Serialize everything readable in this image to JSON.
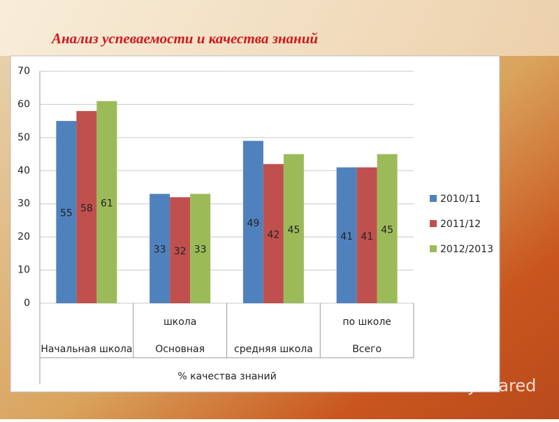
{
  "chart_data": {
    "type": "bar",
    "title": "Анализ успеваемости и качества знаний",
    "x_label": "% качества знаний",
    "watermark": "MyShared",
    "categories": [
      [
        "Начальная школа"
      ],
      [
        "школа",
        "Основная"
      ],
      [
        "средняя школа"
      ],
      [
        "по школе",
        "Всего"
      ]
    ],
    "series": [
      {
        "name": "2010/11",
        "color": "#4f81bd",
        "values": [
          55,
          33,
          49,
          41
        ]
      },
      {
        "name": "2011/12",
        "color": "#c0504d",
        "values": [
          58,
          32,
          42,
          41
        ]
      },
      {
        "name": "2012/2013",
        "color": "#9bbb59",
        "values": [
          61,
          33,
          45,
          45
        ]
      }
    ],
    "ylim": [
      0,
      70
    ],
    "yticks": [
      0,
      10,
      20,
      30,
      40,
      50,
      60,
      70
    ],
    "grid": true,
    "legend": "right"
  }
}
